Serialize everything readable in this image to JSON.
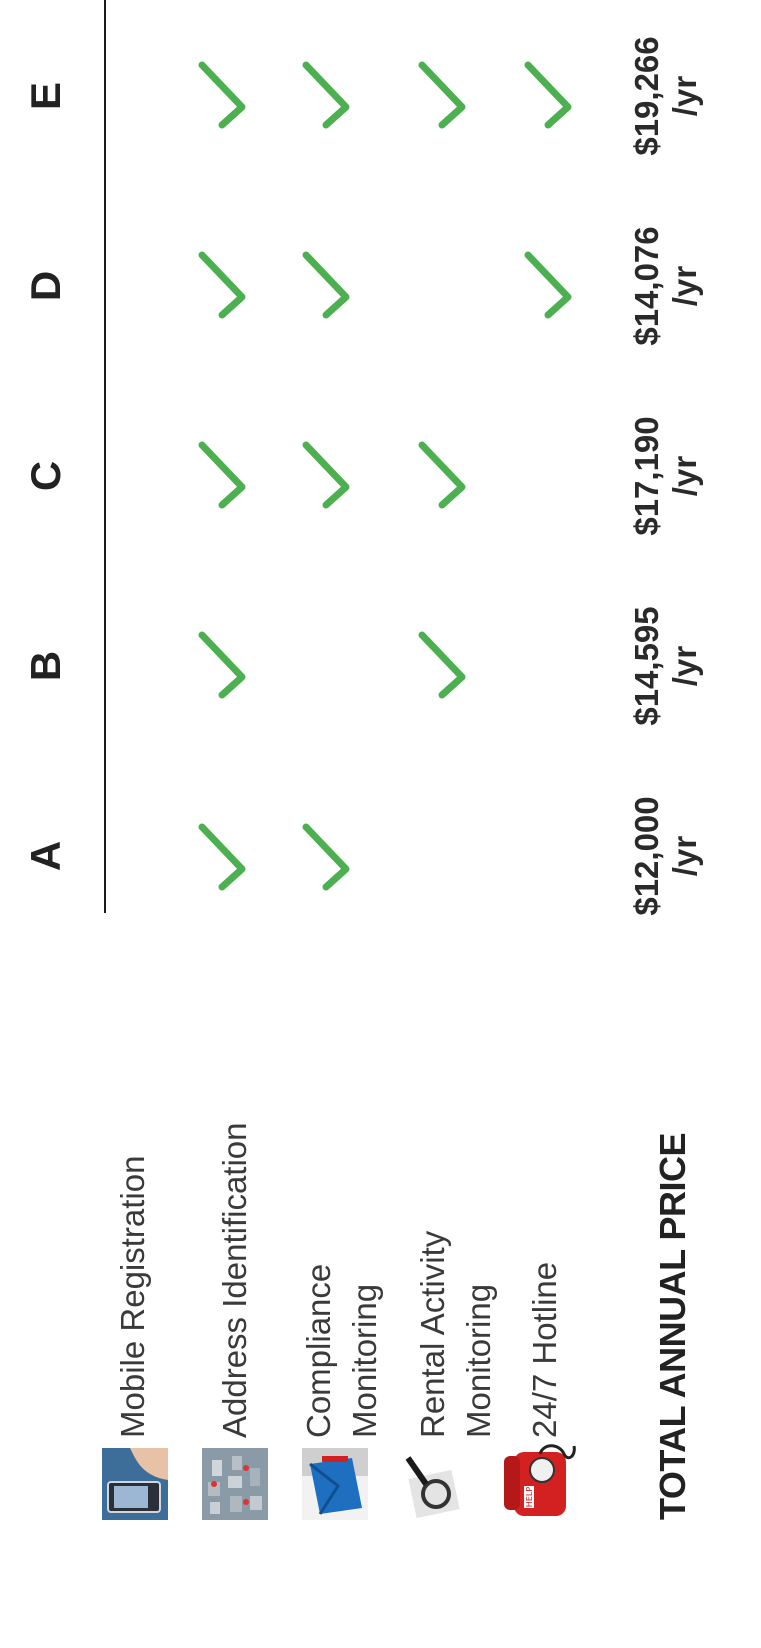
{
  "columns": [
    "A",
    "B",
    "C",
    "D",
    "E"
  ],
  "features": [
    {
      "label": "Mobile Registration",
      "icon": "mobile-phone-icon",
      "checks": [
        false,
        false,
        false,
        false,
        false
      ]
    },
    {
      "label": "Address Identification",
      "icon": "city-map-icon",
      "checks": [
        true,
        true,
        true,
        true,
        true
      ]
    },
    {
      "label": "Compliance\nMonitoring",
      "icon": "envelope-icon",
      "checks": [
        true,
        false,
        true,
        true,
        true
      ]
    },
    {
      "label": "Rental Activity\nMonitoring",
      "icon": "magnifier-icon",
      "checks": [
        false,
        true,
        true,
        false,
        true
      ]
    },
    {
      "label": "24/7 Hotline",
      "icon": "help-phone-icon",
      "checks": [
        false,
        false,
        false,
        true,
        true
      ]
    }
  ],
  "total": {
    "label": "TOTAL ANNUAL PRICE",
    "prices": [
      "$12,000\n/yr",
      "$14,595\n/yr",
      "$17,190\n/yr",
      "$14,076\n/yr",
      "$19,266\n/yr"
    ]
  },
  "colors": {
    "check": "#4caf50",
    "help_phone": "#d32020"
  }
}
